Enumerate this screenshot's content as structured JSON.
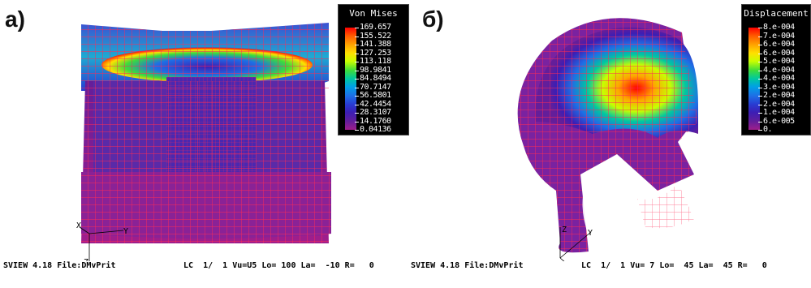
{
  "panels": [
    {
      "label": "а)",
      "legend": {
        "title": "Von Mises",
        "values": [
          "169.657",
          "155.522",
          "141.388",
          "127.253",
          "113.118",
          "98.9841",
          "84.8494",
          "70.7147",
          "56.5801",
          "42.4454",
          "28.3107",
          "14.1760",
          "0.04136"
        ]
      },
      "status": {
        "program": "SVIEW 4.18 File:DMvPrit",
        "view": "LC  1/  1 Vu=U5 Lo= 100 La=  -10 R=   0"
      },
      "axes": {
        "z": "Z",
        "x": "X",
        "y": "Y"
      }
    },
    {
      "label": "б)",
      "legend": {
        "title": "Displacement",
        "values": [
          "8.e-004",
          "7.e-004",
          "6.e-004",
          "6.e-004",
          "5.e-004",
          "4.e-004",
          "4.e-004",
          "3.e-004",
          "2.e-004",
          "2.e-004",
          "1.e-004",
          "6.e-005",
          "0."
        ]
      },
      "status": {
        "program": "SVIEW 4.18 File:DMvPrit",
        "view": "LC  1/  1 Vu= 7 Lo=  45 La=  45 R=   0"
      },
      "axes": {
        "z": "Z",
        "y": "Y"
      }
    }
  ],
  "colors": {
    "mesh_line": "#ff2a55",
    "base_fill": "#c21e8c",
    "scale": [
      "#ff0000",
      "#ff5a00",
      "#ffa500",
      "#ffe000",
      "#c8ff00",
      "#3cdc3c",
      "#00c8a0",
      "#00a0e6",
      "#1e6ee6",
      "#283cd2",
      "#3c1eb4",
      "#641e9a",
      "#a01e8c"
    ]
  }
}
